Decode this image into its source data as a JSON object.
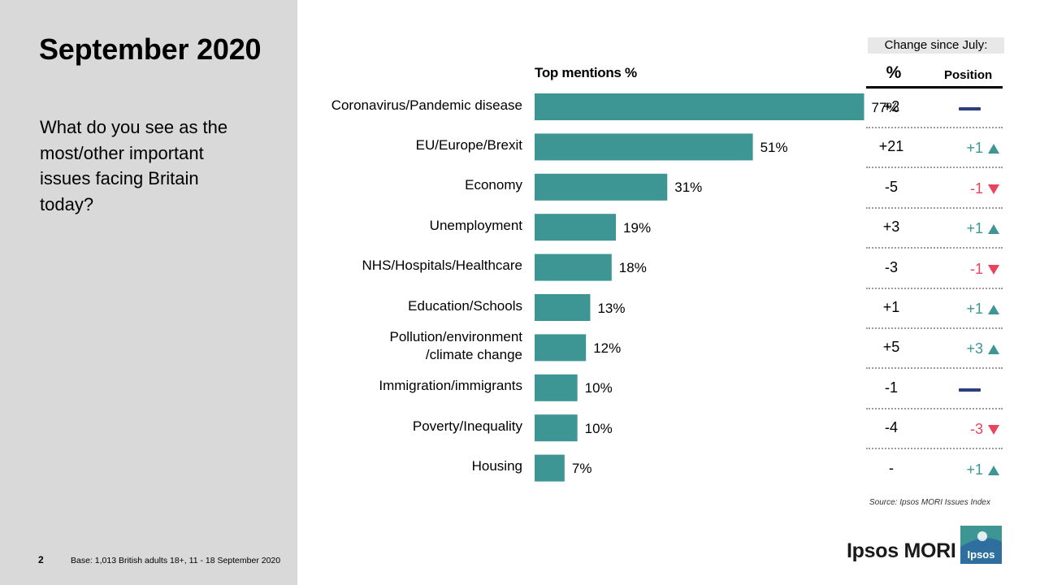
{
  "slide": {
    "title": "September 2020",
    "question": "What do you see as the most/other important issues facing Britain today?",
    "page_number": "2",
    "base_note": "Base: 1,013 British adults 18+, 11 - 18 September 2020",
    "source": "Source: Ipsos MORI Issues Index",
    "brand": "Ipsos MORI",
    "logo_text": "Ipsos"
  },
  "change_table": {
    "header": "Change since July:",
    "pct_header": "%",
    "position_header": "Position",
    "rows": [
      {
        "pct": "+2",
        "position": "",
        "direction": "same"
      },
      {
        "pct": "+21",
        "position": "+1",
        "direction": "up"
      },
      {
        "pct": "-5",
        "position": "-1",
        "direction": "down"
      },
      {
        "pct": "+3",
        "position": "+1",
        "direction": "up"
      },
      {
        "pct": "-3",
        "position": "-1",
        "direction": "down"
      },
      {
        "pct": "+1",
        "position": "+1",
        "direction": "up"
      },
      {
        "pct": "+5",
        "position": "+3",
        "direction": "up"
      },
      {
        "pct": "-1",
        "position": "",
        "direction": "same"
      },
      {
        "pct": "-4",
        "position": "-3",
        "direction": "down"
      },
      {
        "pct": "-",
        "position": "+1",
        "direction": "up"
      }
    ]
  },
  "colors": {
    "bar": "#3d9694",
    "panel": "#d9d9d9",
    "up": "#3d9694",
    "down": "#e8455c",
    "same": "#2b3f7a"
  },
  "chart_data": {
    "type": "bar",
    "orientation": "horizontal",
    "title": "Top mentions %",
    "categories": [
      "Coronavirus/Pandemic disease",
      "EU/Europe/Brexit",
      "Economy",
      "Unemployment",
      "NHS/Hospitals/Healthcare",
      "Education/Schools",
      "Pollution/environment\n/climate change",
      "Immigration/immigrants",
      "Poverty/Inequality",
      "Housing"
    ],
    "values": [
      77,
      51,
      31,
      19,
      18,
      13,
      12,
      10,
      10,
      7
    ],
    "value_labels": [
      "77%",
      "51%",
      "31%",
      "19%",
      "18%",
      "13%",
      "12%",
      "10%",
      "10%",
      "7%"
    ],
    "xlim": [
      0,
      100
    ],
    "grid": false,
    "legend": "none"
  }
}
